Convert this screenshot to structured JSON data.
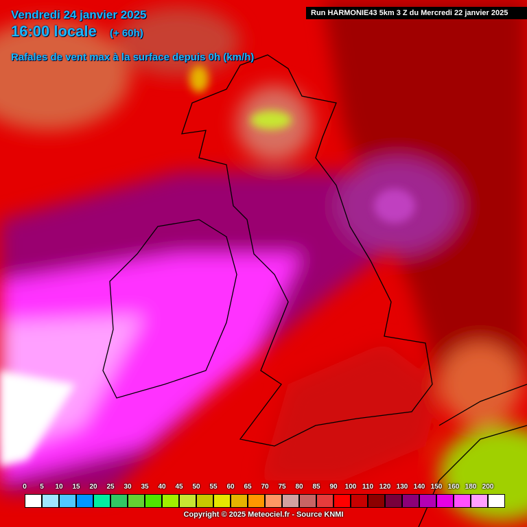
{
  "header": {
    "date": "Vendredi 24 janvier 2025",
    "hour": "16:00 locale",
    "lead": "(+ 60h)",
    "parameter": "Rafales de vent max à la surface depuis 0h (km/h)",
    "run": "Run HARMONIE43 5km 3 Z du Mercredi 22 janvier 2025"
  },
  "legend": [
    {
      "label": 0,
      "color": "#ffffff"
    },
    {
      "label": 5,
      "color": "#a0e6ff"
    },
    {
      "label": 10,
      "color": "#50c8ff"
    },
    {
      "label": 15,
      "color": "#0096ff"
    },
    {
      "label": 20,
      "color": "#00eea0"
    },
    {
      "label": 25,
      "color": "#32c864"
    },
    {
      "label": 30,
      "color": "#64d232"
    },
    {
      "label": 35,
      "color": "#50e600"
    },
    {
      "label": 40,
      "color": "#a0f000"
    },
    {
      "label": 45,
      "color": "#c8e632"
    },
    {
      "label": 50,
      "color": "#c8c800"
    },
    {
      "label": 55,
      "color": "#e6e600"
    },
    {
      "label": 60,
      "color": "#e6b400"
    },
    {
      "label": 65,
      "color": "#ff9600"
    },
    {
      "label": 70,
      "color": "#ff9664"
    },
    {
      "label": 75,
      "color": "#d2a0a0"
    },
    {
      "label": 80,
      "color": "#c86464"
    },
    {
      "label": 85,
      "color": "#e63c3c"
    },
    {
      "label": 90,
      "color": "#ff0000"
    },
    {
      "label": 100,
      "color": "#c80000"
    },
    {
      "label": 110,
      "color": "#8c0000"
    },
    {
      "label": 120,
      "color": "#78003c"
    },
    {
      "label": 130,
      "color": "#8c0078"
    },
    {
      "label": 140,
      "color": "#b400b4"
    },
    {
      "label": 150,
      "color": "#e600e6"
    },
    {
      "label": 160,
      "color": "#ff50ff"
    },
    {
      "label": 180,
      "color": "#ffa0ff"
    },
    {
      "label": 200,
      "color": "#ffffff"
    }
  ],
  "footer": {
    "copyright": "Copyright © 2025 Meteociel.fr - Source KNMI"
  }
}
